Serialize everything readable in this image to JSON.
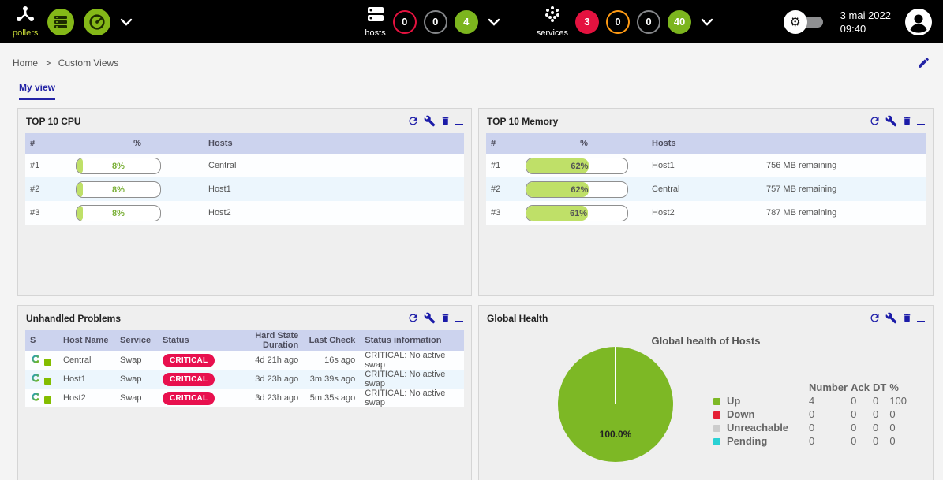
{
  "topbar": {
    "pollers_label": "pollers",
    "hosts_label": "hosts",
    "hosts_counters": {
      "down": "0",
      "unreachable": "0",
      "up": "4"
    },
    "services_label": "services",
    "services_counters": {
      "critical": "3",
      "warning": "0",
      "unknown": "0",
      "ok": "40"
    },
    "date": "3 mai 2022",
    "time": "09:40"
  },
  "breadcrumb": {
    "home": "Home",
    "separator": ">",
    "current": "Custom Views"
  },
  "tabs": {
    "my_view": "My view"
  },
  "panels": {
    "cpu": {
      "title": "TOP 10 CPU",
      "columns": {
        "rank": "#",
        "percent": "%",
        "hosts": "Hosts"
      },
      "rows": [
        {
          "rank": "#1",
          "percent": 8,
          "percent_label": "8%",
          "host": "Central"
        },
        {
          "rank": "#2",
          "percent": 8,
          "percent_label": "8%",
          "host": "Host1"
        },
        {
          "rank": "#3",
          "percent": 8,
          "percent_label": "8%",
          "host": "Host2"
        }
      ]
    },
    "memory": {
      "title": "TOP 10 Memory",
      "columns": {
        "rank": "#",
        "percent": "%",
        "hosts": "Hosts"
      },
      "rows": [
        {
          "rank": "#1",
          "percent": 62,
          "percent_label": "62%",
          "host": "Host1",
          "remaining": "756 MB remaining"
        },
        {
          "rank": "#2",
          "percent": 62,
          "percent_label": "62%",
          "host": "Central",
          "remaining": "757 MB remaining"
        },
        {
          "rank": "#3",
          "percent": 61,
          "percent_label": "61%",
          "host": "Host2",
          "remaining": "787 MB remaining"
        }
      ]
    },
    "problems": {
      "title": "Unhandled Problems",
      "columns": {
        "s": "S",
        "host": "Host Name",
        "service": "Service",
        "status": "Status",
        "duration": "Hard State Duration",
        "last_check": "Last Check",
        "info": "Status information"
      },
      "rows": [
        {
          "host": "Central",
          "service": "Swap",
          "status": "CRITICAL",
          "duration": "4d 21h ago",
          "last_check": "16s ago",
          "info": "CRITICAL: No active swap"
        },
        {
          "host": "Host1",
          "service": "Swap",
          "status": "CRITICAL",
          "duration": "3d 23h ago",
          "last_check": "3m 39s ago",
          "info": "CRITICAL: No active swap"
        },
        {
          "host": "Host2",
          "service": "Swap",
          "status": "CRITICAL",
          "duration": "3d 23h ago",
          "last_check": "5m 35s ago",
          "info": "CRITICAL: No active swap"
        }
      ]
    },
    "health": {
      "title": "Global Health",
      "chart_title": "Global health of Hosts",
      "pie_label": "100.0%",
      "legend_columns": {
        "number": "Number",
        "ack": "Ack",
        "dt": "DT",
        "pct": "%"
      },
      "legend_rows": [
        {
          "label": "Up",
          "color": "#7db825",
          "number": "4",
          "ack": "0",
          "dt": "0",
          "pct": "100"
        },
        {
          "label": "Down",
          "color": "#e41e34",
          "number": "0",
          "ack": "0",
          "dt": "0",
          "pct": "0"
        },
        {
          "label": "Unreachable",
          "color": "#cccccc",
          "number": "0",
          "ack": "0",
          "dt": "0",
          "pct": "0"
        },
        {
          "label": "Pending",
          "color": "#2ad1d4",
          "number": "0",
          "ack": "0",
          "dt": "0",
          "pct": "0"
        }
      ]
    }
  },
  "chart_data": {
    "type": "pie",
    "title": "Global health of Hosts",
    "labels": [
      "Up",
      "Down",
      "Unreachable",
      "Pending"
    ],
    "values": [
      100,
      0,
      0,
      0
    ],
    "colors": [
      "#7db825",
      "#e41e34",
      "#cccccc",
      "#2ad1d4"
    ],
    "annotation": "100.0%",
    "legend_position": "right"
  },
  "colors": {
    "topbar_bg": "#000000",
    "accent_green": "#84b818",
    "status_up_green": "#7cb51e",
    "status_critical_red": "#e4123f",
    "status_warning_orange": "#ff9a13",
    "status_gray": "#85878a",
    "panel_icon_blue": "#1b1ba8",
    "tab_blue": "#2323a5",
    "table_header": "#ccd3ee",
    "bar_fill": "#bfe068",
    "badge_red": "#e8104e",
    "pie_green": "#7db825"
  }
}
